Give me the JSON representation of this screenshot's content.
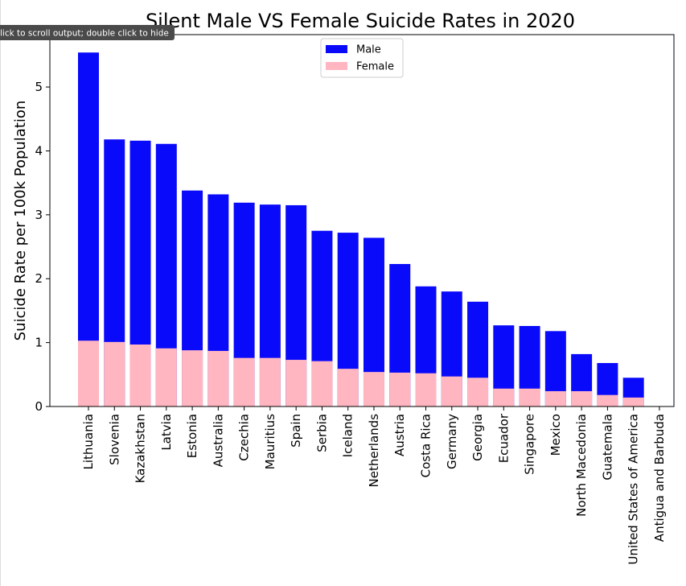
{
  "chart_data": {
    "type": "bar",
    "overlap": true,
    "title": "Silent Male VS Female Suicide Rates in 2020",
    "y_label": "Suicide Rate per 100k Population",
    "categories": [
      "Lithuania",
      "Slovenia",
      "Kazakhstan",
      "Latvia",
      "Estonia",
      "Australia",
      "Czechia",
      "Mauritius",
      "Spain",
      "Serbia",
      "Iceland",
      "Netherlands",
      "Austria",
      "Costa Rica",
      "Germany",
      "Georgia",
      "Ecuador",
      "Singapore",
      "Mexico",
      "North Macedonia",
      "Guatemala",
      "United States of America",
      "Antigua and Barbuda"
    ],
    "series": [
      {
        "name": "Male",
        "color": "#0a0afa",
        "values": [
          5.54,
          4.18,
          4.16,
          4.11,
          3.38,
          3.32,
          3.19,
          3.16,
          3.15,
          2.75,
          2.72,
          2.64,
          2.23,
          1.88,
          1.8,
          1.64,
          1.27,
          1.26,
          1.18,
          0.82,
          0.68,
          0.45,
          0
        ]
      },
      {
        "name": "Female",
        "color": "#ffb6c1",
        "values": [
          1.03,
          1.01,
          0.97,
          0.91,
          0.88,
          0.87,
          0.76,
          0.76,
          0.73,
          0.71,
          0.59,
          0.54,
          0.53,
          0.52,
          0.47,
          0.45,
          0.28,
          0.28,
          0.24,
          0.24,
          0.18,
          0.14,
          0
        ]
      }
    ],
    "ylim": [
      0,
      5.82
    ],
    "yticks": [
      0,
      1,
      2,
      3,
      4,
      5
    ],
    "legend": "upper center",
    "grid": false
  },
  "tooltip": "lick to scroll output; double click to hide"
}
